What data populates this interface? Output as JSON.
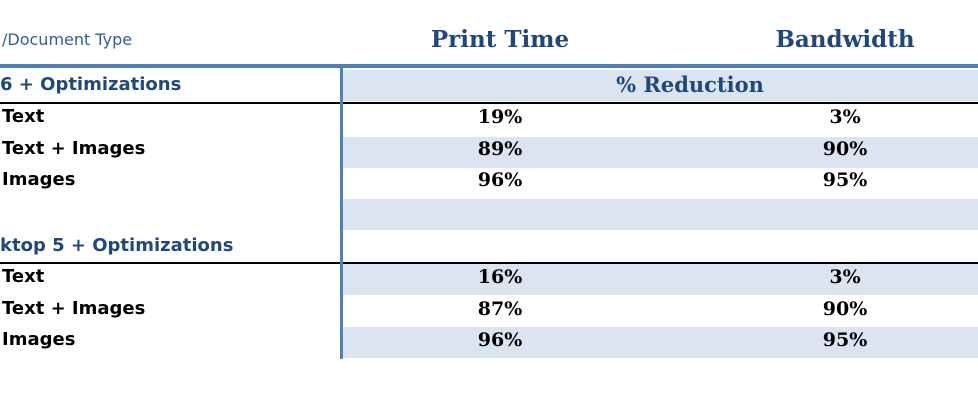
{
  "header": {
    "label": "/Document Type",
    "columns": [
      "Print Time",
      "Bandwidth"
    ]
  },
  "groups": [
    {
      "name": "6 + Optimizations",
      "subheader": "% Reduction",
      "rows": [
        [
          "Text",
          "19%",
          "3%"
        ],
        [
          "Text + Images",
          "89%",
          "90%"
        ],
        [
          "Images",
          "96%",
          "95%"
        ]
      ]
    },
    {
      "name": "ktop 5 + Optimizations",
      "rows": [
        [
          "Text",
          "16%",
          "3%"
        ],
        [
          "Text + Images",
          "87%",
          "90%"
        ],
        [
          "Images",
          "96%",
          "95%"
        ]
      ]
    }
  ]
}
